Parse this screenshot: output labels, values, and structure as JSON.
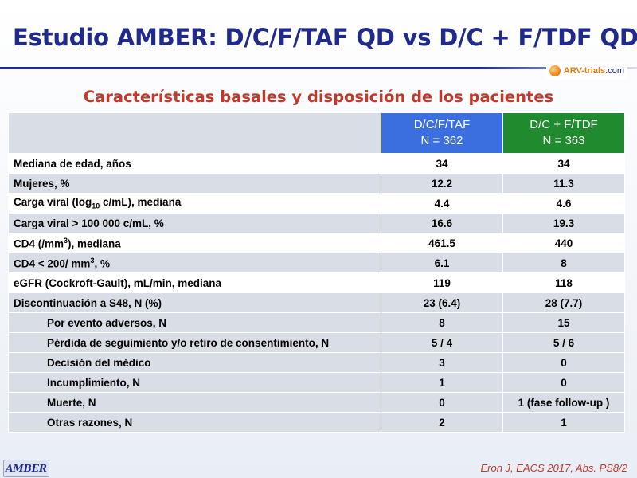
{
  "header": {
    "title": "Estudio AMBER: D/C/F/TAF QD vs D/C + F/TDF QD",
    "logo_brand": "ARV-trials",
    "logo_domain": ".com",
    "subtitle": "Características basales y disposición de los pacientes"
  },
  "table": {
    "columns": [
      {
        "name": "D/C/F/TAF",
        "n": "N = 362",
        "color": "#3b6fe0"
      },
      {
        "name": "D/C + F/TDF",
        "n": "N = 363",
        "color": "#1f8a2e"
      }
    ],
    "rows": [
      {
        "label": "Mediana de edad, años",
        "a": "34",
        "b": "34"
      },
      {
        "label": "Mujeres, %",
        "a": "12.2",
        "b": "11.3"
      },
      {
        "label_pre": "Carga viral (log",
        "label_sub": "10",
        "label_post": " c/mL), mediana",
        "a": "4.4",
        "b": "4.6"
      },
      {
        "label": "Carga viral > 100 000 c/mL, %",
        "a": "16.6",
        "b": "19.3"
      },
      {
        "label_pre": "CD4  (/mm",
        "label_sup": "3",
        "label_post": "), mediana",
        "a": "461.5",
        "b": "440"
      },
      {
        "label_pre": "CD4 ",
        "label_under": "<",
        "label_mid": " 200/ mm",
        "label_sup": "3",
        "label_post": ", %",
        "a": "6.1",
        "b": "8"
      },
      {
        "label": "eGFR (Cockroft-Gault), mL/min, mediana",
        "a": "119",
        "b": "118"
      }
    ],
    "disposition": {
      "label": "Discontinuación a S48, N (%)",
      "a": "23 (6.4)",
      "b": "28 (7.7)",
      "items": [
        {
          "label": "Por evento adversos, N",
          "a": "8",
          "b": "15"
        },
        {
          "label": "Pérdida de seguimiento y/o retiro de consentimiento, N",
          "a": "5 / 4",
          "b": "5 / 6"
        },
        {
          "label": "Decisión del médico",
          "a": "3",
          "b": "0"
        },
        {
          "label": "Incumplimiento, N",
          "a": "1",
          "b": "0"
        },
        {
          "label": "Muerte, N",
          "a": "0",
          "b": "1 (fase follow-up )"
        },
        {
          "label": "Otras razones, N",
          "a": "2",
          "b": "1"
        }
      ]
    }
  },
  "footer": {
    "badge": "AMBER",
    "citation": "Eron J, EACS 2017, Abs. PS8/2"
  }
}
